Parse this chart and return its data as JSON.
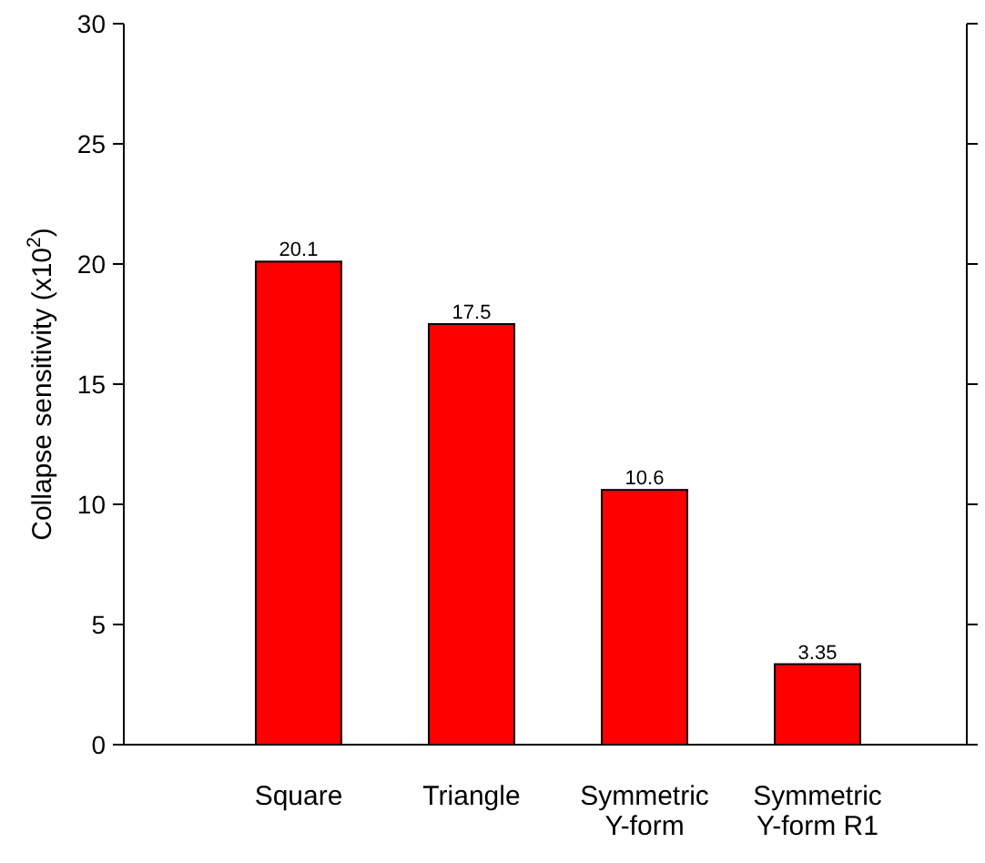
{
  "chart_data": {
    "type": "bar",
    "ylabel": "Collapse sensitivity (x10$^{2}$)",
    "categories": [
      "Square",
      "Triangle",
      "Symmetric\nY-form",
      "Symmetric\nY-form R1"
    ],
    "values": [
      20.1,
      17.5,
      10.6,
      3.35
    ],
    "color": "#ff0000",
    "ylim": [
      0,
      30
    ],
    "yticks": [
      0,
      5,
      10,
      15,
      20,
      25,
      30
    ],
    "data_labels": true,
    "grid": false
  }
}
